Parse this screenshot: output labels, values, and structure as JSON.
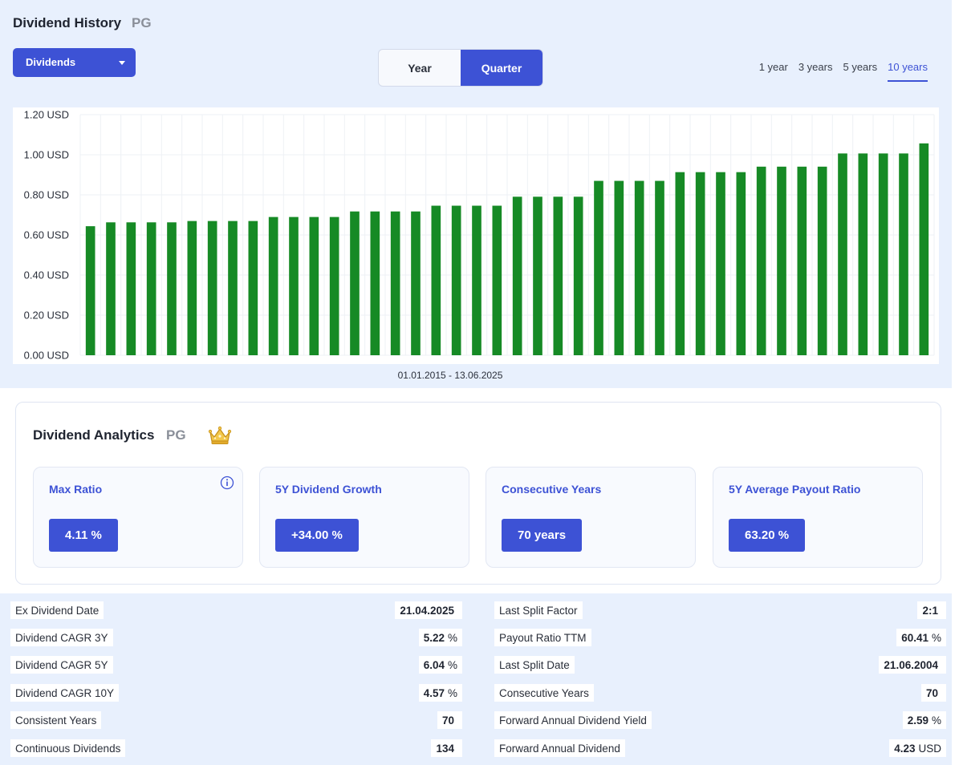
{
  "history": {
    "title": "Dividend History",
    "ticker": "PG",
    "dropdown_label": "Dividends",
    "toggle": {
      "year": "Year",
      "quarter": "Quarter",
      "selected": "Quarter"
    },
    "ranges": [
      "1 year",
      "3 years",
      "5 years",
      "10 years"
    ],
    "active_range": "10 years",
    "period": "01.01.2015 - 13.06.2025"
  },
  "chart_data": {
    "type": "bar",
    "title": "",
    "xlabel": "",
    "ylabel": "",
    "ylim": [
      0,
      1.2
    ],
    "yticks": [
      "0.00 USD",
      "0.20 USD",
      "0.40 USD",
      "0.60 USD",
      "0.80 USD",
      "1.00 USD",
      "1.20 USD"
    ],
    "grid": true,
    "bar_color": "#168a25",
    "values": [
      0.6436,
      0.6629,
      0.6629,
      0.6629,
      0.6629,
      0.6695,
      0.6695,
      0.6695,
      0.6695,
      0.6896,
      0.6896,
      0.6896,
      0.6896,
      0.7172,
      0.7172,
      0.7172,
      0.7172,
      0.7459,
      0.7459,
      0.7459,
      0.7459,
      0.7907,
      0.7907,
      0.7907,
      0.7907,
      0.8698,
      0.8698,
      0.8698,
      0.8698,
      0.9133,
      0.9133,
      0.9133,
      0.9133,
      0.9407,
      0.9407,
      0.9407,
      0.9407,
      1.0065,
      1.0065,
      1.0065,
      1.0065,
      1.0568
    ]
  },
  "analytics": {
    "title": "Dividend Analytics",
    "ticker": "PG",
    "crown_icon": "crown-icon",
    "cards": [
      {
        "label": "Max Ratio",
        "value": "4.11 %"
      },
      {
        "label": "5Y Dividend Growth",
        "value": "+34.00 %"
      },
      {
        "label": "Consecutive Years",
        "value": "70 years"
      },
      {
        "label": "5Y Average Payout Ratio",
        "value": "63.20 %"
      }
    ]
  },
  "stats": {
    "left": [
      {
        "label": "Ex Dividend Date",
        "value": "21.04.2025",
        "unit": ""
      },
      {
        "label": "Dividend CAGR 3Y",
        "value": "5.22",
        "unit": "%"
      },
      {
        "label": "Dividend CAGR 5Y",
        "value": "6.04",
        "unit": "%"
      },
      {
        "label": "Dividend CAGR 10Y",
        "value": "4.57",
        "unit": "%"
      },
      {
        "label": "Consistent Years",
        "value": "70",
        "unit": ""
      },
      {
        "label": "Continuous Dividends",
        "value": "134",
        "unit": ""
      }
    ],
    "right": [
      {
        "label": "Last Split Factor",
        "value": "2:1",
        "unit": ""
      },
      {
        "label": "Payout Ratio TTM",
        "value": "60.41",
        "unit": "%"
      },
      {
        "label": "Last Split Date",
        "value": "21.06.2004",
        "unit": ""
      },
      {
        "label": "Consecutive Years",
        "value": "70",
        "unit": ""
      },
      {
        "label": "Forward Annual Dividend Yield",
        "value": "2.59",
        "unit": "%"
      },
      {
        "label": "Forward Annual Dividend",
        "value": "4.23",
        "unit": "USD"
      }
    ]
  },
  "colors": {
    "accent": "#3d52d5",
    "panel_bg": "#e8f0fd",
    "bar": "#168a25"
  }
}
